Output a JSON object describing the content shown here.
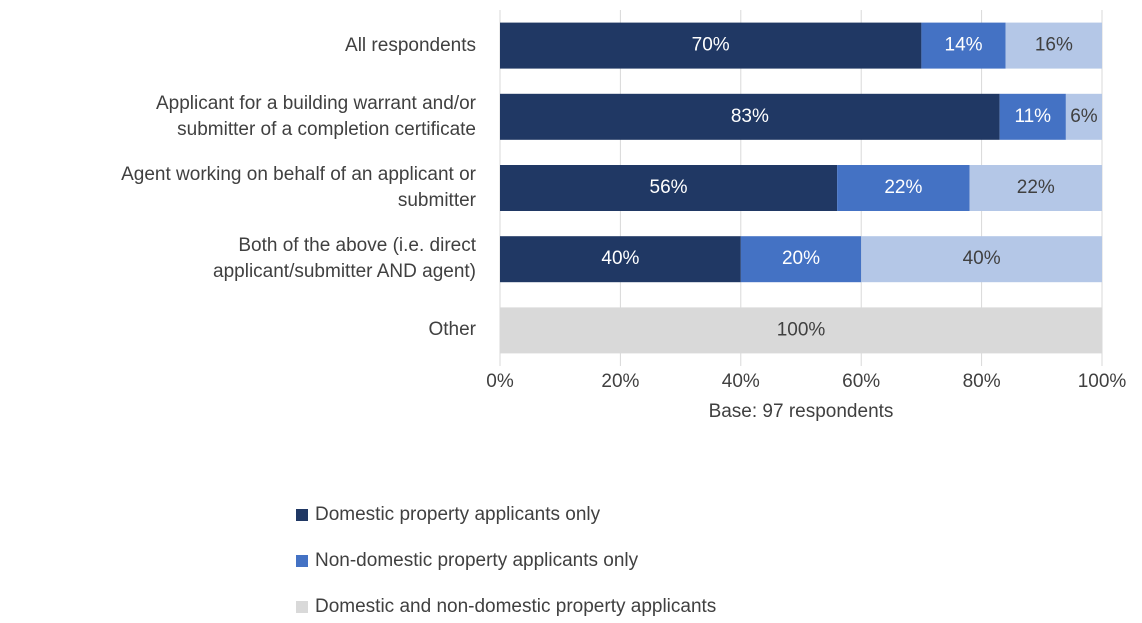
{
  "chart_data": {
    "type": "stacked_barh",
    "categories": [
      "All respondents",
      "Applicant for a building warrant and/or\nsubmitter of a completion certificate",
      "Agent working on behalf of an applicant or\nsubmitter",
      "Both of the above (i.e. direct\napplicant/submitter AND agent)",
      "Other"
    ],
    "series": [
      {
        "name": "Domestic property applicants only",
        "color": "#203864",
        "label_color": "#ffffff",
        "values": [
          70,
          83,
          56,
          40,
          0
        ],
        "value_labels": [
          "70%",
          "83%",
          "56%",
          "40%",
          null
        ]
      },
      {
        "name": "Non-domestic property applicants only",
        "color": "#4472c4",
        "label_color": "#ffffff",
        "values": [
          14,
          11,
          22,
          20,
          0
        ],
        "value_labels": [
          "14%",
          "11%",
          "22%",
          "20%",
          null
        ]
      },
      {
        "name": "Domestic and non-domestic property applicants",
        "color": "#d9d9d9",
        "label_color": "#404040",
        "colors": [
          "#b4c7e7",
          "#b4c7e7",
          "#b4c7e7",
          "#b4c7e7",
          "#d9d9d9"
        ],
        "values": [
          16,
          6,
          22,
          40,
          100
        ],
        "value_labels": [
          "16%",
          "6%",
          "22%",
          "40%",
          "100%"
        ]
      }
    ],
    "xlim": [
      0,
      100
    ],
    "xticks": [
      {
        "value": 0,
        "label": "0%"
      },
      {
        "value": 20,
        "label": "20%"
      },
      {
        "value": 40,
        "label": "40%"
      },
      {
        "value": 60,
        "label": "60%"
      },
      {
        "value": 80,
        "label": "80%"
      },
      {
        "value": 100,
        "label": "100%"
      }
    ],
    "x_label": "Base: 97 respondents",
    "grid": true,
    "legend": "bottom"
  }
}
